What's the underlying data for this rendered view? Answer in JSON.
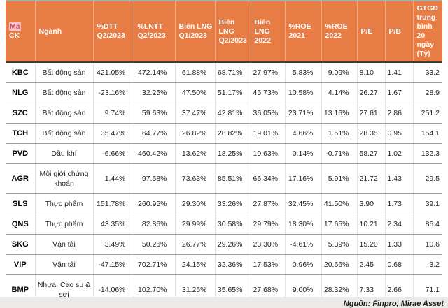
{
  "chart_data": {
    "type": "table",
    "title": "",
    "columns": [
      "Mã CK",
      "Ngành",
      "%DTT Q2/2023",
      "%LNTT Q2/2023",
      "Biên LNG Q1/2023",
      "Biên LNG Q2/2023",
      "Biên LNG 2022",
      "%ROE 2021",
      "%ROE 2022",
      "P/E",
      "P/B",
      "GTGD trung bình 20 ngày (Tỷ)"
    ],
    "rows": [
      [
        "KBC",
        "Bất động sản",
        "421.05%",
        "472.14%",
        "61.88%",
        "68.71%",
        "27.97%",
        "5.83%",
        "9.09%",
        "8.10",
        "1.41",
        "33.2"
      ],
      [
        "NLG",
        "Bất động sản",
        "-23.16%",
        "32.25%",
        "47.50%",
        "51.17%",
        "45.73%",
        "10.58%",
        "4.14%",
        "26.27",
        "1.67",
        "28.9"
      ],
      [
        "SZC",
        "Bất động sản",
        "9.74%",
        "59.63%",
        "37.47%",
        "42.81%",
        "36.05%",
        "23.71%",
        "13.16%",
        "27.61",
        "2.86",
        "251.2"
      ],
      [
        "TCH",
        "Bất động sản",
        "35.47%",
        "64.77%",
        "26.82%",
        "28.82%",
        "19.01%",
        "4.66%",
        "1.51%",
        "28.35",
        "0.95",
        "154.1"
      ],
      [
        "PVD",
        "Dầu khí",
        "-6.66%",
        "460.42%",
        "13.62%",
        "18.25%",
        "10.63%",
        "0.14%",
        "-0.71%",
        "58.27",
        "1.02",
        "132.3"
      ],
      [
        "AGR",
        "Môi giới chứng khoán",
        "1.44%",
        "97.58%",
        "73.63%",
        "85.51%",
        "66.34%",
        "17.16%",
        "5.91%",
        "21.72",
        "1.43",
        "29.5"
      ],
      [
        "SLS",
        "Thực phẩm",
        "151.78%",
        "260.95%",
        "29.30%",
        "33.26%",
        "27.87%",
        "32.45%",
        "41.50%",
        "3.90",
        "1.73",
        "39.1"
      ],
      [
        "QNS",
        "Thực phẩm",
        "43.35%",
        "82.86%",
        "29.99%",
        "30.58%",
        "29.79%",
        "18.30%",
        "17.65%",
        "10.21",
        "2.34",
        "86.4"
      ],
      [
        "SKG",
        "Vận tải",
        "3.49%",
        "50.26%",
        "26.77%",
        "29.26%",
        "23.30%",
        "-4.61%",
        "5.39%",
        "15.20",
        "1.33",
        "10.6"
      ],
      [
        "VIP",
        "Vận tải",
        "-47.15%",
        "702.71%",
        "24.15%",
        "32.36%",
        "17.53%",
        "0.96%",
        "20.66%",
        "2.45",
        "0.68",
        "3.2"
      ],
      [
        "BMP",
        "Nhựa, Cao su & sợi",
        "-14.06%",
        "102.70%",
        "31.25%",
        "35.65%",
        "27.68%",
        "9.00%",
        "28.32%",
        "7.33",
        "2.66",
        "71.1"
      ]
    ],
    "source_note": "Nguồn: Finpro, Mirae Asset"
  },
  "table": {
    "columns": [
      {
        "id": "ma-ck",
        "highlight_prefix": "Mã",
        "label_rest": " CK"
      },
      {
        "id": "nganh",
        "label": "Ngành"
      },
      {
        "id": "dtt-q2-2023",
        "label": "%DTT Q2/2023"
      },
      {
        "id": "lntt-q2-2023",
        "label": "%LNTT Q2/2023"
      },
      {
        "id": "bien-lng-q1-2023",
        "label": "Biên LNG Q1/2023"
      },
      {
        "id": "bien-lng-q2-2023",
        "label": "Biên LNG Q2/2023"
      },
      {
        "id": "bien-lng-2022",
        "label": "Biên LNG 2022"
      },
      {
        "id": "roe-2021",
        "label": "%ROE 2021"
      },
      {
        "id": "roe-2022",
        "label": "%ROE 2022"
      },
      {
        "id": "pe",
        "label": "P/E"
      },
      {
        "id": "pb",
        "label": "P/B"
      },
      {
        "id": "gtgd",
        "label": "GTGD trung bình 20 ngày (Tỷ)"
      }
    ]
  },
  "colors": {
    "header_orange": "#E87C45",
    "highlight_pink": "#F7C5CB",
    "highlight_text": "#C94F5E",
    "top_border_gray": "#ABADA5",
    "row_line_gray": "#9C9C9C",
    "footer_bg": "#ECEAE7"
  }
}
